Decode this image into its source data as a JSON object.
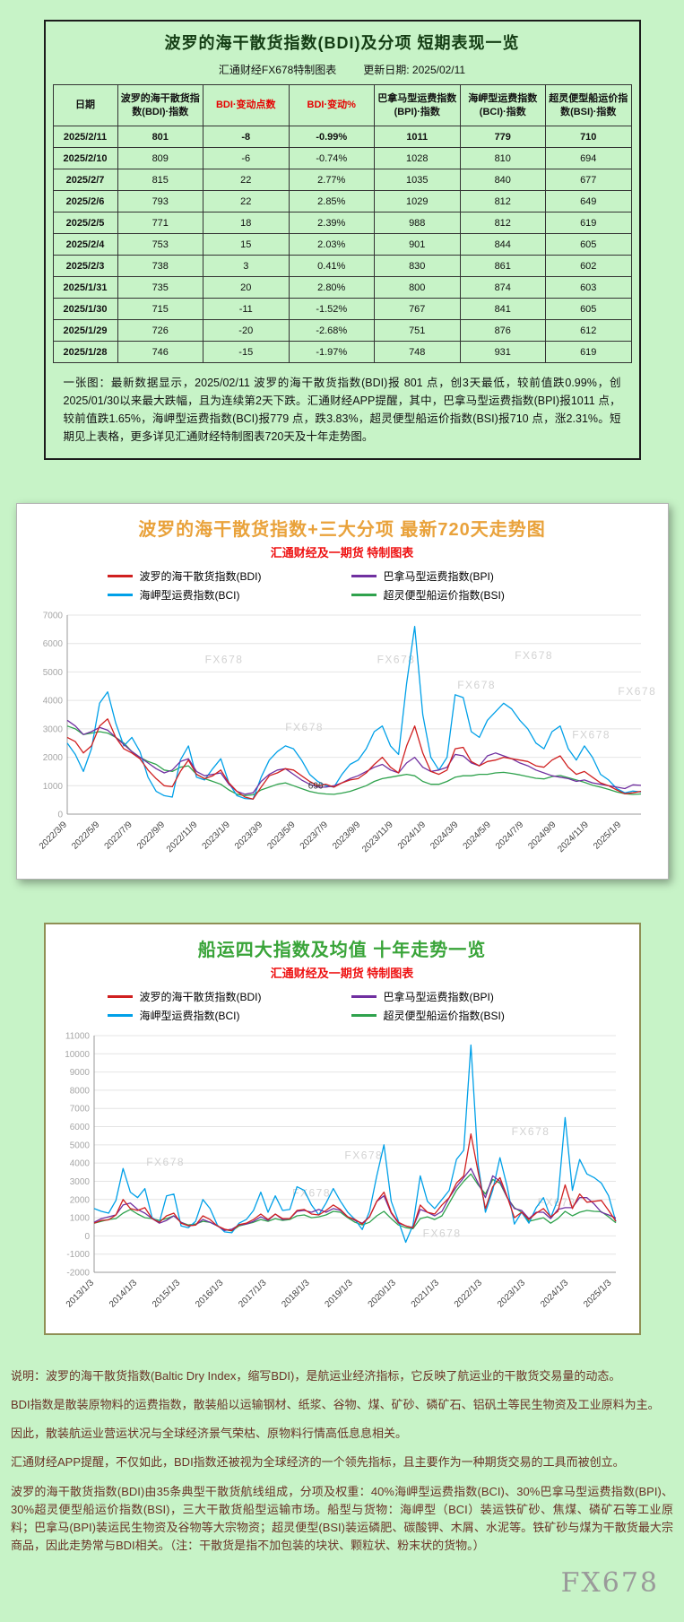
{
  "page": {
    "watermark": "FX678",
    "colors": {
      "page_background": "#c7f3c7",
      "accent_red": "#e60000",
      "chart720_title": "#e9a23b",
      "chart10y_title": "#39a439",
      "chart_subtitle": "#ee1111",
      "footer_text": "#6b3226"
    }
  },
  "table_section": {
    "title": "波罗的海干散货指数(BDI)及分项 短期表现一览",
    "source": "汇通财经FX678特制图表",
    "update_date": "更新日期: 2025/02/11",
    "columns": [
      {
        "label": "日期",
        "accent": false
      },
      {
        "label": "波罗的海干散货指数(BDI)·指数",
        "accent": false
      },
      {
        "label": "BDI·变动点数",
        "accent": true
      },
      {
        "label": "BDI·变动%",
        "accent": true
      },
      {
        "label": "巴拿马型运费指数(BPI)·指数",
        "accent": false
      },
      {
        "label": "海岬型运费指数(BCI)·指数",
        "accent": false
      },
      {
        "label": "超灵便型船运价指数(BSI)·指数",
        "accent": false
      }
    ],
    "rows": [
      [
        "2025/2/11",
        "801",
        "-8",
        "-0.99%",
        "1011",
        "779",
        "710"
      ],
      [
        "2025/2/10",
        "809",
        "-6",
        "-0.74%",
        "1028",
        "810",
        "694"
      ],
      [
        "2025/2/7",
        "815",
        "22",
        "2.77%",
        "1035",
        "840",
        "677"
      ],
      [
        "2025/2/6",
        "793",
        "22",
        "2.85%",
        "1029",
        "812",
        "649"
      ],
      [
        "2025/2/5",
        "771",
        "18",
        "2.39%",
        "988",
        "812",
        "619"
      ],
      [
        "2025/2/4",
        "753",
        "15",
        "2.03%",
        "901",
        "844",
        "605"
      ],
      [
        "2025/2/3",
        "738",
        "3",
        "0.41%",
        "830",
        "861",
        "602"
      ],
      [
        "2025/1/31",
        "735",
        "20",
        "2.80%",
        "800",
        "874",
        "603"
      ],
      [
        "2025/1/30",
        "715",
        "-11",
        "-1.52%",
        "767",
        "841",
        "605"
      ],
      [
        "2025/1/29",
        "726",
        "-20",
        "-2.68%",
        "751",
        "876",
        "612"
      ],
      [
        "2025/1/28",
        "746",
        "-15",
        "-1.97%",
        "748",
        "931",
        "619"
      ]
    ],
    "note": "一张图：最新数据显示，2025/02/11 波罗的海干散货指数(BDI)报 801 点，创3天最低，较前值跌0.99%，创2025/01/30以来最大跌幅，且为连续第2天下跌。汇通财经APP提醒，其中，巴拿马型运费指数(BPI)报1011 点，较前值跌1.65%，海岬型运费指数(BCI)报779 点，跌3.83%，超灵便型船运价指数(BSI)报710 点，涨2.31%。短期见上表格，更多详见汇通财经特制图表720天及十年走势图。"
  },
  "footer": {
    "lines": [
      "说明：波罗的海干散货指数(Baltic Dry Index，缩写BDI)，是航运业经济指标，它反映了航运业的干散货交易量的动态。",
      "BDI指数是散装原物料的运费指数，散装船以运输钢材、纸浆、谷物、煤、矿砂、磷矿石、铝矾土等民生物资及工业原料为主。",
      "因此，散装航运业营运状况与全球经济景气荣枯、原物料行情高低息息相关。",
      "汇通财经APP提醒，不仅如此，BDI指数还被视为全球经济的一个领先指标，且主要作为一种期货交易的工具而被创立。",
      "波罗的海干散货指数(BDI)由35条典型干散货航线组成，分项及权重：40%海岬型运费指数(BCI)、30%巴拿马型运费指数(BPI)、30%超灵便型船运价指数(BSI)，三大干散货船型运输市场。船型与货物：海岬型（BCI）装运铁矿砂、焦煤、磷矿石等工业原料；巴拿马(BPI)装运民生物资及谷物等大宗物资；超灵便型(BSI)装运磷肥、碳酸钾、木屑、水泥等。铁矿砂与煤为干散货最大宗商品，因此走势常与BDI相关。（注：干散货是指不加包装的块状、颗粒状、粉末状的货物。）"
    ]
  },
  "chart_data": [
    {
      "type": "line",
      "title": "波罗的海干散货指数+三大分项 最新720天走势图",
      "subtitle": "汇通财经及一期货 特制图表",
      "legend_position": "top",
      "grid": true,
      "ylim": [
        0,
        7000
      ],
      "y_step": 1000,
      "x_tick_span": 0.966,
      "x_ticks": [
        "2022/3/9",
        "2022/5/9",
        "2022/7/9",
        "2022/9/9",
        "2022/11/9",
        "2023/1/9",
        "2023/3/9",
        "2023/5/9",
        "2023/7/9",
        "2023/9/9",
        "2023/11/9",
        "2024/1/9",
        "2024/3/9",
        "2024/5/9",
        "2024/7/9",
        "2024/9/9",
        "2024/11/9",
        "2025/1/9"
      ],
      "annotation": {
        "text": "696",
        "x_frac": 0.42,
        "y": 900
      },
      "watermarks": [
        {
          "x": 0.24,
          "y": 0.24,
          "text": "FX678"
        },
        {
          "x": 0.54,
          "y": 0.24,
          "text": "FX678"
        },
        {
          "x": 0.78,
          "y": 0.22,
          "text": "FX678"
        },
        {
          "x": 0.38,
          "y": 0.58,
          "text": "FX678"
        },
        {
          "x": 0.68,
          "y": 0.37,
          "text": "FX678"
        },
        {
          "x": 0.88,
          "y": 0.62,
          "text": "FX678"
        },
        {
          "x": 0.96,
          "y": 0.4,
          "text": "FX678"
        }
      ],
      "series": [
        {
          "id": "bdi",
          "name": "波罗的海干散货指数(BDI)",
          "color": "#d02020",
          "values": [
            2700,
            2550,
            2150,
            2400,
            3100,
            3350,
            2700,
            2300,
            2150,
            1950,
            1550,
            1250,
            1000,
            965,
            1500,
            1900,
            1400,
            1250,
            1350,
            1550,
            1100,
            800,
            600,
            530,
            950,
            1350,
            1450,
            1600,
            1550,
            1350,
            1150,
            1000,
            1050,
            950,
            1100,
            1200,
            1250,
            1450,
            1750,
            2000,
            1650,
            1450,
            2400,
            3100,
            2150,
            1500,
            1400,
            1550,
            2300,
            2350,
            1850,
            1700,
            1850,
            1900,
            2000,
            1950,
            1900,
            1850,
            1700,
            1650,
            1900,
            2050,
            1650,
            1400,
            1500,
            1300,
            1100,
            1000,
            850,
            715,
            750,
            801
          ]
        },
        {
          "id": "bpi",
          "name": "巴拿马型运费指数(BPI)",
          "color": "#7030a0",
          "values": [
            3300,
            3100,
            2800,
            2900,
            3050,
            2950,
            2700,
            2450,
            2200,
            2000,
            1800,
            1600,
            1450,
            1550,
            1850,
            1950,
            1500,
            1350,
            1400,
            1450,
            1050,
            800,
            700,
            750,
            1150,
            1400,
            1550,
            1600,
            1400,
            1200,
            1050,
            950,
            950,
            1000,
            1100,
            1250,
            1350,
            1500,
            1650,
            1750,
            1550,
            1450,
            1800,
            2000,
            1650,
            1500,
            1550,
            1650,
            2100,
            2050,
            1800,
            1700,
            2050,
            2150,
            2050,
            1950,
            1800,
            1700,
            1550,
            1450,
            1350,
            1300,
            1250,
            1150,
            1200,
            1100,
            1050,
            1000,
            950,
            900,
            1030,
            1011
          ]
        },
        {
          "id": "bci",
          "name": "海岬型运费指数(BCI)",
          "color": "#00a0e8",
          "values": [
            2500,
            2100,
            1500,
            2300,
            3900,
            4300,
            3200,
            2400,
            2700,
            2200,
            1300,
            800,
            650,
            600,
            1900,
            2400,
            1300,
            1200,
            1600,
            1950,
            1100,
            650,
            550,
            530,
            1300,
            1900,
            2200,
            2400,
            2300,
            1900,
            1400,
            1150,
            1000,
            950,
            1400,
            1750,
            1900,
            2300,
            2900,
            3100,
            2400,
            2100,
            4600,
            6600,
            3500,
            2000,
            1550,
            2000,
            4200,
            4100,
            2900,
            2700,
            3300,
            3600,
            3900,
            3700,
            3300,
            3000,
            2500,
            2300,
            2900,
            3100,
            2300,
            1900,
            2400,
            2000,
            1400,
            1200,
            900,
            750,
            810,
            779
          ]
        },
        {
          "id": "bsi",
          "name": "超灵便型船运价指数(BSI)",
          "color": "#2fa24d",
          "values": [
            3100,
            3000,
            2800,
            2850,
            2900,
            2850,
            2700,
            2500,
            2200,
            2000,
            1850,
            1750,
            1550,
            1500,
            1650,
            1700,
            1400,
            1250,
            1150,
            1050,
            850,
            700,
            650,
            680,
            850,
            950,
            1050,
            1100,
            1000,
            900,
            800,
            740,
            710,
            696,
            740,
            800,
            900,
            1000,
            1150,
            1250,
            1300,
            1350,
            1400,
            1350,
            1150,
            1050,
            1050,
            1150,
            1300,
            1350,
            1350,
            1400,
            1400,
            1450,
            1470,
            1430,
            1380,
            1320,
            1260,
            1240,
            1320,
            1360,
            1280,
            1200,
            1120,
            1020,
            950,
            870,
            780,
            720,
            694,
            710
          ]
        }
      ]
    },
    {
      "type": "line",
      "title": "船运四大指数及均值 十年走势一览",
      "subtitle": "汇通财经及一期货 特制图表",
      "legend_position": "top",
      "grid": true,
      "ylim": [
        -2000,
        11000
      ],
      "y_step": 1000,
      "x_tick_span": 0.992,
      "x_ticks": [
        "2013/1/3",
        "2014/1/3",
        "2015/1/3",
        "2016/1/3",
        "2017/1/3",
        "2018/1/3",
        "2019/1/3",
        "2020/1/3",
        "2021/1/3",
        "2022/1/3",
        "2023/1/3",
        "2024/1/3",
        "2025/1/3"
      ],
      "watermarks": [
        {
          "x": 0.1,
          "y": 0.55,
          "text": "FX678"
        },
        {
          "x": 0.48,
          "y": 0.52,
          "text": "FX678"
        },
        {
          "x": 0.8,
          "y": 0.42,
          "text": "FX678"
        },
        {
          "x": 0.38,
          "y": 0.68,
          "text": "FX678"
        },
        {
          "x": 0.63,
          "y": 0.85,
          "text": "FX678"
        },
        {
          "x": 0.85,
          "y": 0.72,
          "text": "FX678"
        }
      ],
      "series": [
        {
          "id": "bdi",
          "name": "波罗的海干散货指数(BDI)",
          "color": "#d02020",
          "values": [
            700,
            850,
            880,
            1150,
            2000,
            1500,
            1400,
            1550,
            950,
            750,
            1100,
            1250,
            700,
            560,
            590,
            1100,
            900,
            550,
            370,
            290,
            620,
            700,
            900,
            1200,
            900,
            1200,
            950,
            950,
            1400,
            1450,
            1200,
            1150,
            1400,
            1700,
            1450,
            1050,
            900,
            650,
            1050,
            1900,
            2400,
            1300,
            750,
            550,
            450,
            1700,
            1300,
            1200,
            1700,
            2100,
            2900,
            3300,
            5600,
            3500,
            1500,
            2700,
            3200,
            2150,
            1000,
            1300,
            900,
            1250,
            1500,
            1050,
            1350,
            2800,
            1500,
            2300,
            1850,
            1900,
            1950,
            1400,
            800
          ]
        },
        {
          "id": "bpi",
          "name": "巴拿马型运费指数(BPI)",
          "color": "#7030a0",
          "values": [
            750,
            950,
            1050,
            1150,
            1700,
            1800,
            1450,
            1250,
            950,
            700,
            850,
            1100,
            750,
            550,
            600,
            900,
            750,
            550,
            300,
            370,
            600,
            650,
            800,
            1050,
            850,
            1200,
            900,
            950,
            1350,
            1400,
            1300,
            1450,
            1300,
            1500,
            1400,
            1050,
            850,
            700,
            1050,
            1900,
            2200,
            1250,
            700,
            550,
            450,
            1450,
            1300,
            1100,
            1350,
            2100,
            2700,
            3200,
            3700,
            2900,
            2100,
            3300,
            3000,
            2100,
            1500,
            1400,
            950,
            1300,
            1300,
            950,
            1450,
            1550,
            1550,
            2100,
            2100,
            1750,
            1300,
            1150,
            980
          ]
        },
        {
          "id": "bci",
          "name": "海岬型运费指数(BCI)",
          "color": "#00a0e8",
          "values": [
            1500,
            1350,
            1250,
            1950,
            3700,
            2400,
            2100,
            2600,
            1000,
            750,
            2200,
            2300,
            550,
            450,
            800,
            2000,
            1500,
            600,
            220,
            170,
            700,
            900,
            1400,
            2400,
            1300,
            2200,
            1400,
            1450,
            2700,
            2500,
            1700,
            1150,
            1800,
            2600,
            1900,
            1300,
            900,
            350,
            1350,
            3300,
            5000,
            1900,
            800,
            -350,
            600,
            3300,
            1900,
            1500,
            2000,
            2500,
            4200,
            4700,
            10485,
            3900,
            1300,
            2500,
            4300,
            2700,
            650,
            1300,
            700,
            1550,
            2100,
            1000,
            2000,
            6500,
            2500,
            4200,
            3400,
            3200,
            2900,
            2200,
            780
          ]
        },
        {
          "id": "bsi",
          "name": "超灵便型船运价指数(BSI)",
          "color": "#2fa24d",
          "values": [
            700,
            800,
            900,
            950,
            1250,
            1450,
            1200,
            1000,
            950,
            850,
            950,
            1100,
            750,
            600,
            650,
            800,
            750,
            550,
            350,
            270,
            550,
            650,
            750,
            900,
            800,
            950,
            850,
            900,
            1100,
            1150,
            1000,
            1050,
            1150,
            1350,
            1300,
            1000,
            750,
            600,
            750,
            1100,
            1350,
            950,
            600,
            450,
            400,
            950,
            1050,
            900,
            1100,
            1800,
            2500,
            3000,
            3400,
            2800,
            2300,
            3100,
            2900,
            2100,
            1550,
            1300,
            800,
            900,
            1000,
            700,
            950,
            1350,
            1100,
            1300,
            1400,
            1350,
            1330,
            1050,
            720
          ]
        }
      ]
    }
  ]
}
